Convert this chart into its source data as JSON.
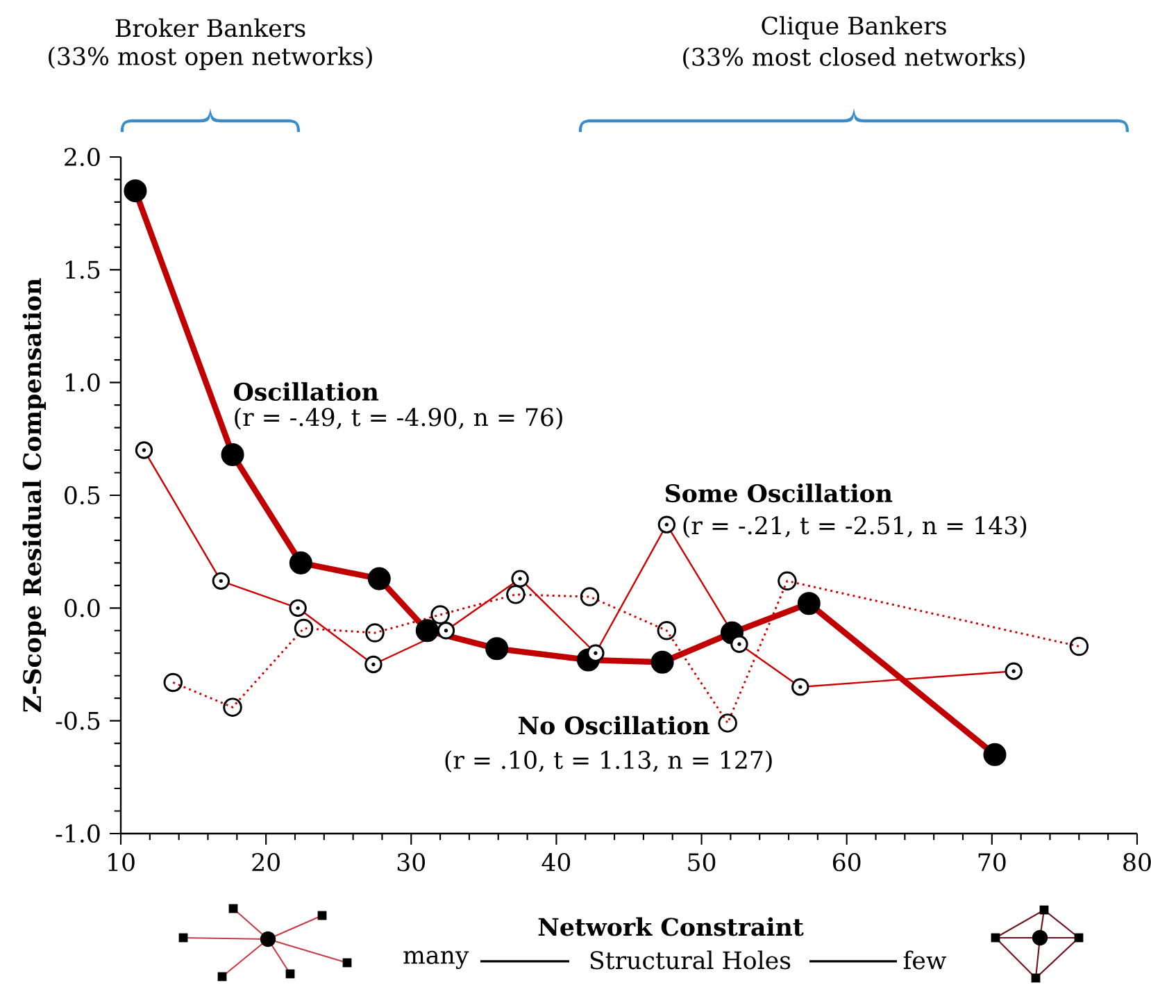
{
  "chart_data": {
    "type": "line",
    "xlabel": "Network Constraint",
    "ylabel": "Z-Scope Residual Compensation",
    "xlim": [
      10,
      80
    ],
    "ylim": [
      -1,
      2
    ],
    "xticks": [
      10,
      20,
      30,
      40,
      50,
      60,
      70,
      80
    ],
    "yticks": [
      {
        "value": -1,
        "label": "-1.0"
      },
      {
        "value": -0.5,
        "label": "-0.5"
      },
      {
        "value": 0,
        "label": "0.0"
      },
      {
        "value": 0.5,
        "label": "0.5"
      },
      {
        "value": 1,
        "label": "1.0"
      },
      {
        "value": 1.5,
        "label": "1.5"
      },
      {
        "value": 2,
        "label": "2.0"
      }
    ],
    "grid": false,
    "legend": false,
    "marker": "circle",
    "series": [
      {
        "name": "Oscillation",
        "color": "#c00000",
        "line_style": "solid",
        "x": [
          11.0,
          17.7,
          22.4,
          27.8,
          31.1,
          35.9,
          42.2,
          47.3,
          52.1,
          57.4,
          70.2
        ],
        "values": [
          1.85,
          0.68,
          0.2,
          0.13,
          -0.1,
          -0.18,
          -0.23,
          -0.24,
          -0.11,
          0.02,
          -0.65
        ]
      },
      {
        "name": "Some Oscillation",
        "color": "#cc0000",
        "line_style": "solid",
        "x": [
          11.6,
          16.9,
          22.2,
          27.4,
          32.4,
          37.5,
          42.7,
          47.6,
          52.6,
          56.8,
          71.5
        ],
        "values": [
          0.7,
          0.12,
          0.0,
          -0.25,
          -0.1,
          0.13,
          -0.2,
          0.37,
          -0.16,
          -0.35,
          -0.28
        ]
      },
      {
        "name": "No Oscillation",
        "color": "#cc0000",
        "line_style": "dotted",
        "x": [
          13.6,
          17.7,
          22.6,
          27.5,
          32.0,
          37.2,
          42.3,
          47.6,
          51.8,
          55.9,
          76.0
        ],
        "values": [
          -0.33,
          -0.44,
          -0.09,
          -0.11,
          -0.03,
          0.06,
          0.05,
          -0.1,
          -0.51,
          0.12,
          -0.17
        ]
      }
    ],
    "annotations": [
      "(r = -.49, t = -4.90, n = 76)",
      "(r = -.21, t = -2.51, n = 143)",
      "(r = .10, t = 1.13, n = 127)",
      "Broker Bankers",
      "(33% most open networks)",
      "Clique Bankers",
      "(33% most closed networks)",
      "many",
      "Structural Holes",
      "few"
    ]
  }
}
